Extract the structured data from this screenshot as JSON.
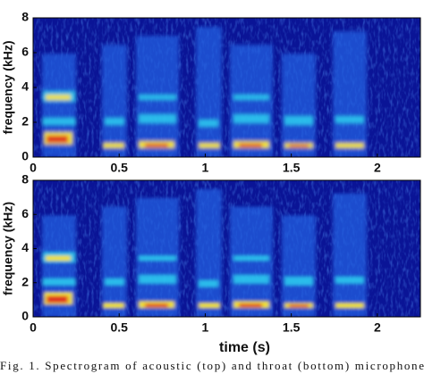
{
  "charts": [
    {
      "type": "spectrogram",
      "ylabel": "frequency (kHz)",
      "xlim": [
        0,
        2.25
      ],
      "xticks": [
        0,
        0.5,
        1,
        1.5,
        2
      ],
      "ylim": [
        0,
        8
      ],
      "yticks": [
        0,
        2,
        4,
        6,
        8
      ]
    },
    {
      "type": "spectrogram",
      "ylabel": "frequency (kHz)",
      "xlabel": "time (s)",
      "xlim": [
        0,
        2.25
      ],
      "xticks": [
        0,
        0.5,
        1,
        1.5,
        2
      ],
      "ylim": [
        0,
        8
      ],
      "yticks": [
        0,
        2,
        4,
        6,
        8
      ]
    }
  ],
  "caption": "Fig. 1. Spectrogram of acoustic (top) and throat (bottom) microphone"
}
